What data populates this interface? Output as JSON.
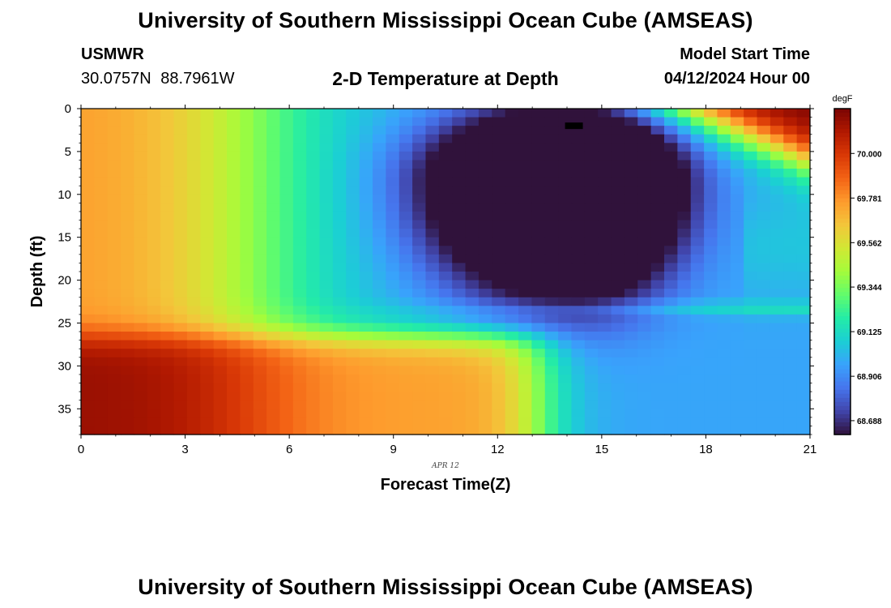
{
  "header": {
    "title": "University of Southern Mississippi Ocean Cube (AMSEAS)",
    "station": "USMWR",
    "coords": "30.0757N 88.7961W",
    "plot_title": "2-D Temperature at Depth",
    "start_label": "Model Start Time",
    "start_value": "04/12/2024 Hour 00"
  },
  "footer": {
    "title": "University of Southern Mississippi Ocean Cube (AMSEAS)"
  },
  "chart_data": {
    "type": "heatmap",
    "title": "2-D Temperature at Depth",
    "xlabel": "Forecast Time(Z)",
    "ylabel": "Depth (ft)",
    "date_label": "APR 12",
    "xlim": [
      0,
      21
    ],
    "ylim": [
      0,
      38
    ],
    "y_inverted": true,
    "xticks": [
      0,
      3,
      6,
      9,
      12,
      15,
      18,
      21
    ],
    "yticks": [
      0,
      5,
      10,
      15,
      20,
      25,
      30,
      35
    ],
    "colorbar": {
      "unit": "degF",
      "min": 68.62,
      "max": 70.22,
      "ticks": [
        "68.688",
        "68.906",
        "69.125",
        "69.344",
        "69.562",
        "69.781",
        "70.000"
      ],
      "colormap": [
        "#30123b",
        "#4145ab",
        "#4675ed",
        "#39a2fc",
        "#1bcfd4",
        "#24eca6",
        "#61fc6c",
        "#a4fc3b",
        "#d1e834",
        "#f3c63a",
        "#fe9b2d",
        "#f36315",
        "#d93806",
        "#b11901",
        "#7a0403"
      ]
    },
    "description": "Cold core (~68.65 degF) centered near 14Z at 3-10 ft; warm (>70 degF) near-surface water after 18Z; warm layer (~69.7 degF) below 27 ft before 13Z",
    "features": {
      "cold_core": {
        "time": 14.0,
        "depth": 6,
        "value": 68.65
      },
      "surface_warming_after": 18,
      "deep_warm_layer_below_ft": 27,
      "missing_marker": {
        "time": 14.2,
        "depth": 2
      }
    }
  }
}
